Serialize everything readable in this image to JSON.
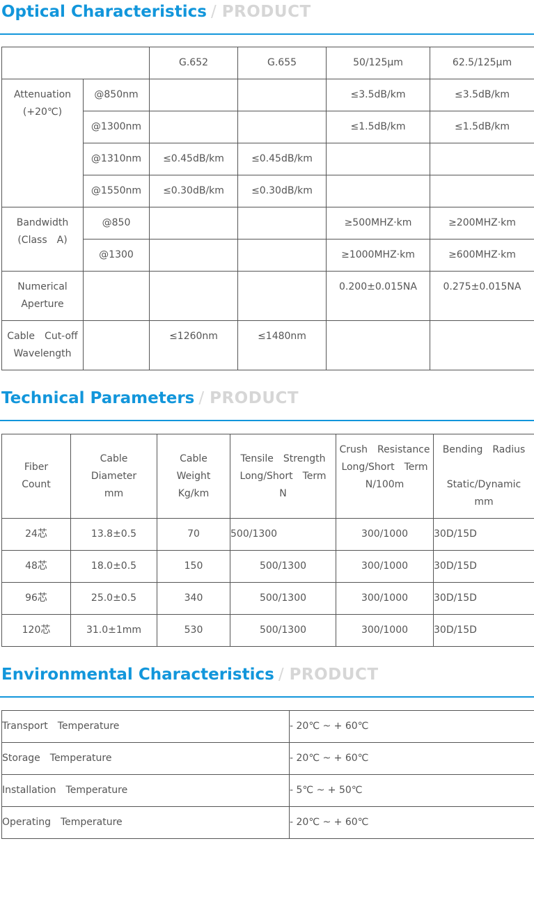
{
  "theme": {
    "accent": "#1296db",
    "tag_color": "#d6d6d6",
    "border": "#555555"
  },
  "sections": {
    "optical": {
      "title": "Optical Characteristics",
      "slash": "/",
      "tag": "PRODUCT"
    },
    "technical": {
      "title": "Technical Parameters",
      "slash": "/",
      "tag": "PRODUCT"
    },
    "environmental": {
      "title": "Environmental Characteristics",
      "slash": "/",
      "tag": "PRODUCT"
    }
  },
  "optical": {
    "headers": [
      "G.652",
      "G.655",
      "50/125μm",
      "62.5/125μm"
    ],
    "attenuation": {
      "label_1": "Attenuation",
      "label_2": "(+20℃)",
      "rows": [
        {
          "sub": "@850nm",
          "g652": "",
          "g655": "",
          "mm50": "≤3.5dB/km",
          "mm62": "≤3.5dB/km"
        },
        {
          "sub": "@1300nm",
          "g652": "",
          "g655": "",
          "mm50": "≤1.5dB/km",
          "mm62": "≤1.5dB/km"
        },
        {
          "sub": "@1310nm",
          "g652": "≤0.45dB/km",
          "g655": "≤0.45dB/km",
          "mm50": "",
          "mm62": ""
        },
        {
          "sub": "@1550nm",
          "g652": "≤0.30dB/km",
          "g655": "≤0.30dB/km",
          "mm50": "",
          "mm62": ""
        }
      ]
    },
    "bandwidth": {
      "label_1": "Bandwidth",
      "label_2": "(Class　A)",
      "rows": [
        {
          "sub": "@850",
          "g652": "",
          "g655": "",
          "mm50": "≥500MHZ·km",
          "mm62": "≥200MHZ·km"
        },
        {
          "sub": "@1300",
          "g652": "",
          "g655": "",
          "mm50": "≥1000MHZ·km",
          "mm62": "≥600MHZ·km"
        }
      ]
    },
    "numerical_aperture": {
      "label_1": "Numerical",
      "label_2": "Aperture",
      "g652": "",
      "g655": "",
      "mm50": "0.200±0.015NA",
      "mm62": "0.275±0.015NA"
    },
    "cutoff": {
      "label_1": "Cable　Cut-off",
      "label_2": "Wavelength",
      "g652": "≤1260nm",
      "g655": "≤1480nm",
      "mm50": "",
      "mm62": ""
    }
  },
  "technical": {
    "headers": {
      "fiber": [
        "Fiber",
        "Count"
      ],
      "diameter": [
        "Cable",
        "Diameter",
        "mm"
      ],
      "weight": [
        "Cable",
        "Weight",
        "Kg/km"
      ],
      "tensile": [
        "Tensile　Strength",
        "Long/Short　Term",
        "N"
      ],
      "crush": [
        "Crush　Resistance",
        "Long/Short　Term",
        "N/100m"
      ],
      "bending": [
        "Bending　Radius",
        "",
        "Static/Dynamic",
        "mm"
      ]
    },
    "rows": [
      {
        "fiber": "24芯",
        "diameter": "13.8±0.5",
        "weight": "70",
        "tensile": "500/1300",
        "crush": "300/1000",
        "bending": "30D/15D"
      },
      {
        "fiber": "48芯",
        "diameter": "18.0±0.5",
        "weight": "150",
        "tensile": "500/1300",
        "crush": "300/1000",
        "bending": "30D/15D"
      },
      {
        "fiber": "96芯",
        "diameter": "25.0±0.5",
        "weight": "340",
        "tensile": "500/1300",
        "crush": "300/1000",
        "bending": "30D/15D"
      },
      {
        "fiber": "120芯",
        "diameter": "31.0±1mm",
        "weight": "530",
        "tensile": "500/1300",
        "crush": "300/1000",
        "bending": "30D/15D"
      }
    ]
  },
  "environmental": {
    "rows": [
      {
        "label": "Transport　Temperature",
        "value": "- 20℃ ~ + 60℃"
      },
      {
        "label": "Storage　Temperature",
        "value": "- 20℃ ~ + 60℃"
      },
      {
        "label": "Installation　Temperature",
        "value": "- 5℃ ~ + 50℃"
      },
      {
        "label": "Operating　Temperature",
        "value": "- 20℃ ~ + 60℃"
      }
    ]
  }
}
